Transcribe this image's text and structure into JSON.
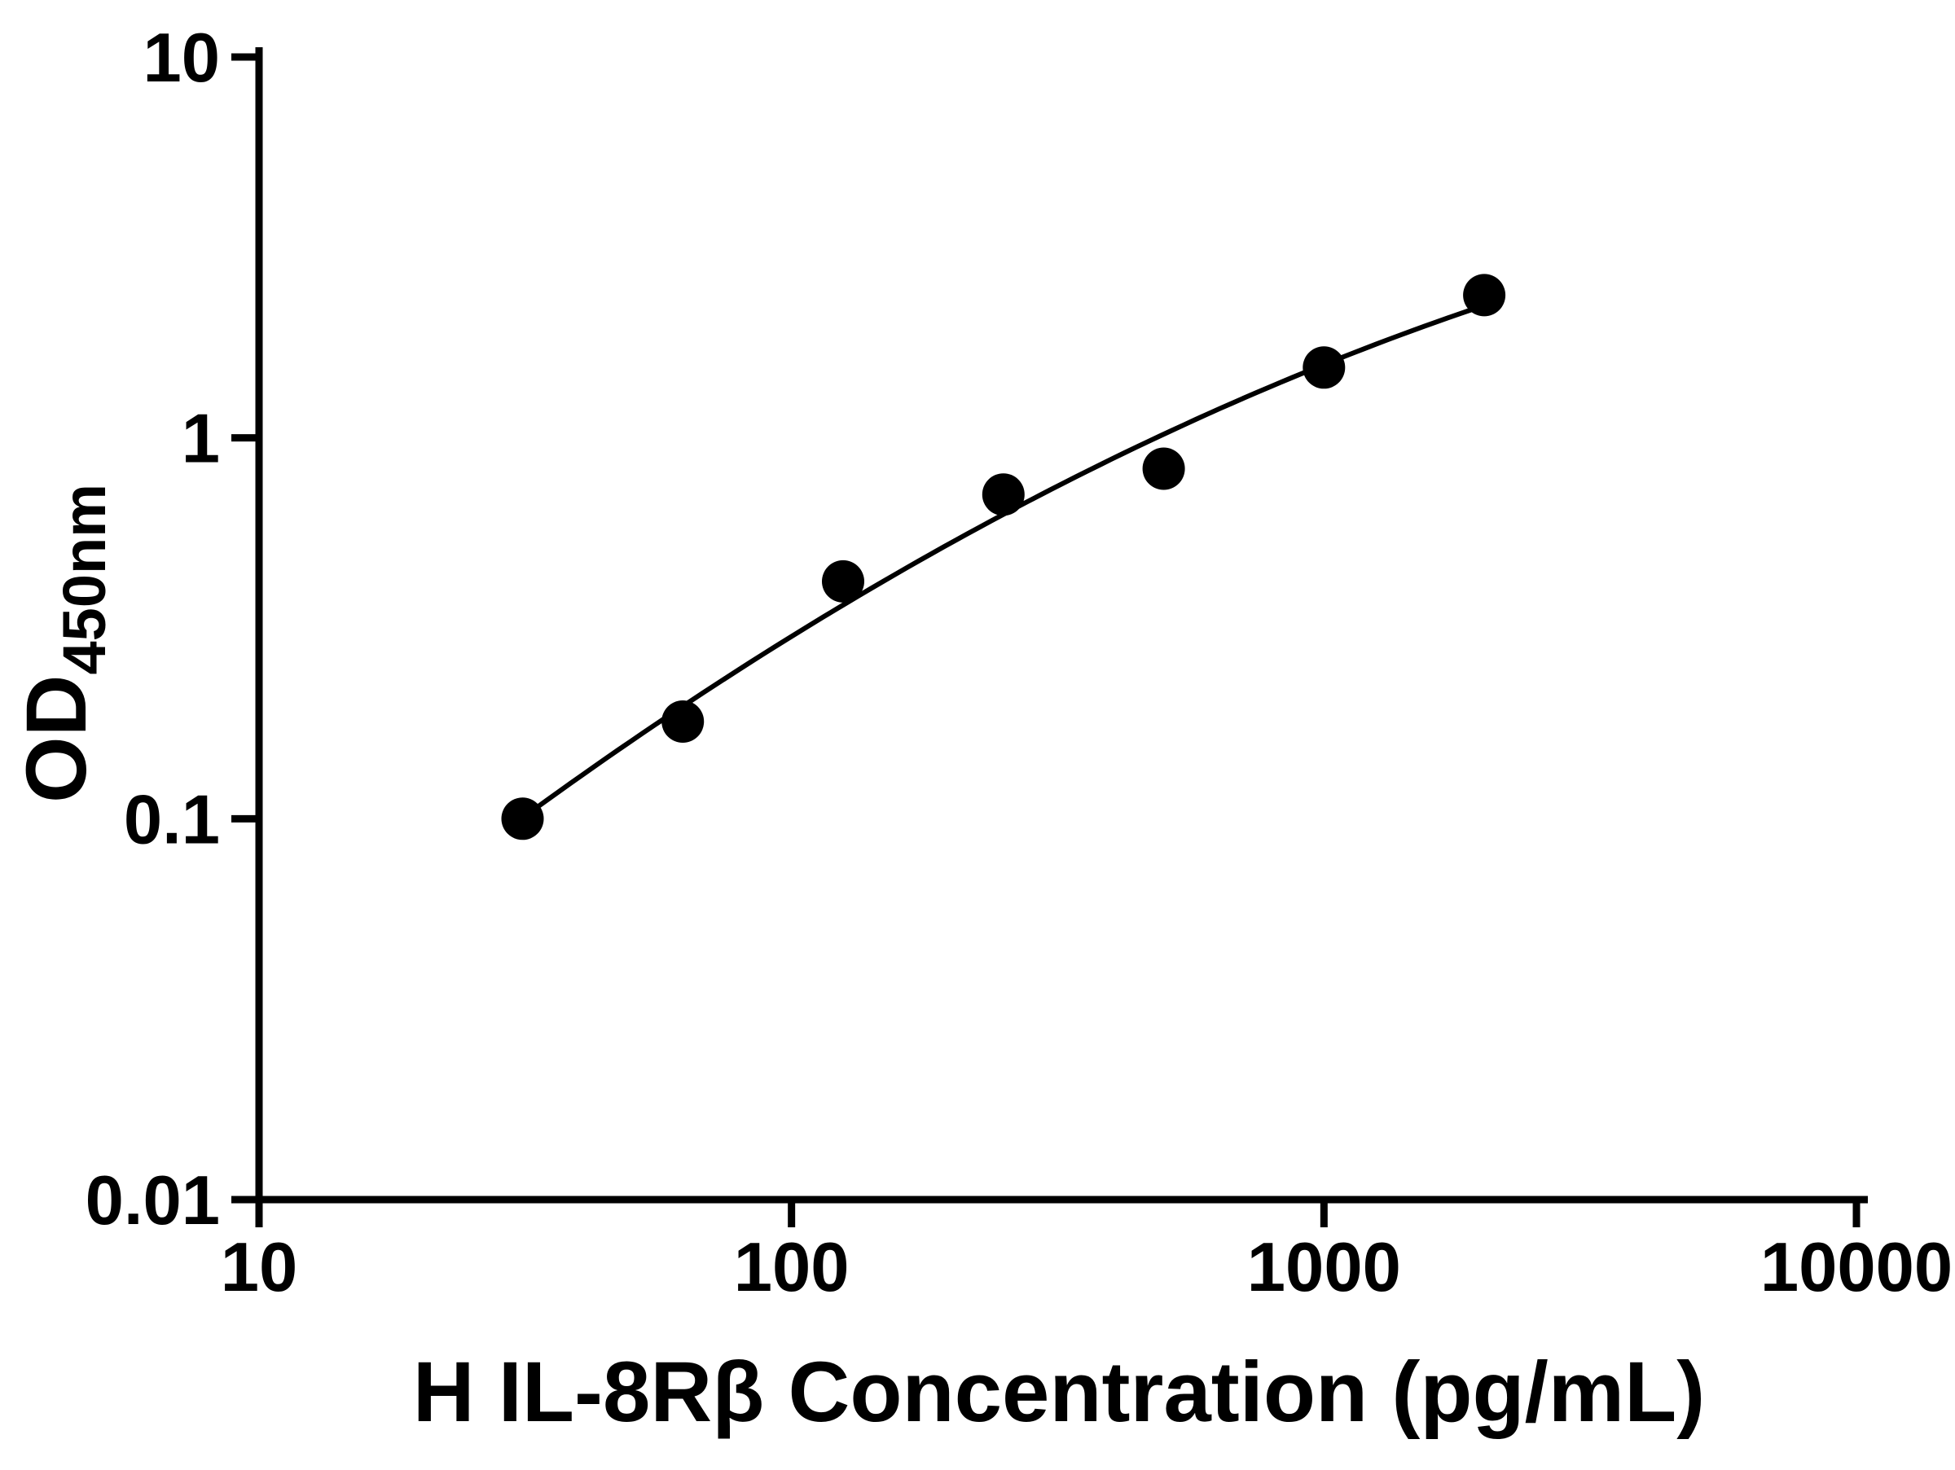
{
  "page": {
    "background": "#ffffff"
  },
  "chart_data": {
    "type": "scatter",
    "title": "",
    "xlabel": "H IL-8Rβ Concentration (pg/mL)",
    "ylabel": "OD450nm",
    "ylabel_main": "OD",
    "ylabel_sub": "450nm",
    "x_scale": "log10",
    "y_scale": "log10",
    "xlim": [
      10,
      10000
    ],
    "ylim": [
      0.01,
      10
    ],
    "x_ticks": [
      "10",
      "100",
      "1000",
      "10000"
    ],
    "y_ticks": [
      "0.01",
      "0.1",
      "1",
      "10"
    ],
    "grid": false,
    "legend": "none",
    "axis_color": "#000000",
    "series": [
      {
        "name": "standard-data-points",
        "type": "scatter",
        "marker": "filled-circle",
        "color": "#000000",
        "x": [
          31.25,
          62.5,
          125,
          250,
          500,
          1000,
          2000
        ],
        "y": [
          0.1,
          0.18,
          0.42,
          0.71,
          0.83,
          1.53,
          2.37
        ]
      },
      {
        "name": "fitted-standard-curve",
        "type": "line",
        "color": "#000000",
        "fit": "quadratic-in-loglog",
        "x_range": [
          31.25,
          2000
        ]
      }
    ]
  }
}
